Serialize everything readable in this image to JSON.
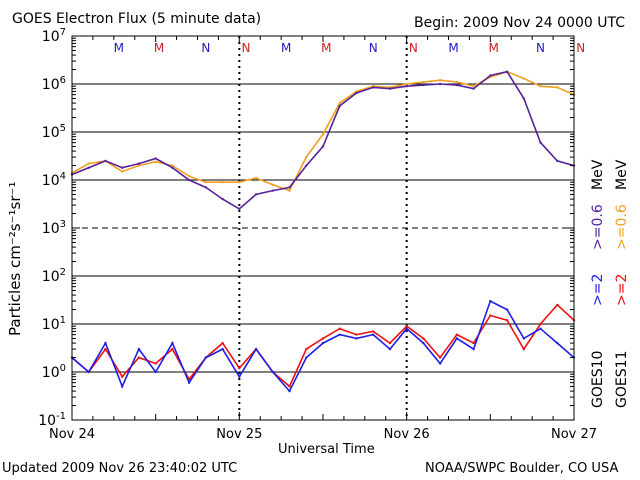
{
  "header": {
    "title": "GOES Electron Flux (5 minute data)",
    "begin": "Begin: 2009 Nov 24 0000 UTC"
  },
  "footer": {
    "updated": "Updated 2009 Nov 26 23:40:02 UTC",
    "source": "NOAA/SWPC Boulder, CO USA"
  },
  "axes": {
    "ylabel": "Particles cm⁻²s⁻¹sr⁻¹",
    "xlabel": "Universal Time",
    "xticks": [
      "Nov 24",
      "Nov 25",
      "Nov 26",
      "Nov 27"
    ]
  },
  "legend": {
    "goes10": "GOES10",
    "goes11": "GOES11",
    "g10_2mev": ">=2",
    "g10_06mev": ">=0.6",
    "g11_2mev": ">=2",
    "g11_06mev": ">=0.6",
    "unit1": "MeV",
    "unit2": "MeV"
  },
  "colors": {
    "g10_2mev": "#1f1fe6",
    "g11_2mev": "#f01010",
    "g10_06mev": "#55229a",
    "g11_06mev": "#f0a020",
    "mn_blue": "#2020c0",
    "mn_red": "#d02020"
  },
  "mn_markers": [
    {
      "label": "M",
      "day": 0.28,
      "color": "blue"
    },
    {
      "label": "M",
      "day": 0.52,
      "color": "red"
    },
    {
      "label": "N",
      "day": 0.8,
      "color": "blue"
    },
    {
      "label": "N",
      "day": 1.04,
      "color": "red"
    },
    {
      "label": "M",
      "day": 1.28,
      "color": "blue"
    },
    {
      "label": "M",
      "day": 1.52,
      "color": "red"
    },
    {
      "label": "N",
      "day": 1.8,
      "color": "blue"
    },
    {
      "label": "N",
      "day": 2.04,
      "color": "red"
    },
    {
      "label": "M",
      "day": 2.28,
      "color": "blue"
    },
    {
      "label": "M",
      "day": 2.52,
      "color": "red"
    },
    {
      "label": "N",
      "day": 2.8,
      "color": "blue"
    },
    {
      "label": "N",
      "day": 3.04,
      "color": "red"
    }
  ],
  "chart_data": {
    "type": "line",
    "title": "GOES Electron Flux (5 minute data)",
    "xlabel": "Universal Time",
    "ylabel": "Particles cm⁻²s⁻¹sr⁻¹",
    "x_unit": "days since 2009 Nov 24 0000 UTC",
    "xlim": [
      0,
      3
    ],
    "ylim": [
      0.1,
      10000000
    ],
    "yscale": "log",
    "yticks": [
      0.1,
      1,
      10,
      100,
      1000,
      10000,
      100000,
      1000000,
      10000000
    ],
    "xtick_labels": [
      "Nov 24",
      "Nov 25",
      "Nov 26",
      "Nov 27"
    ],
    "series": [
      {
        "name": "GOES11 >=0.6 MeV",
        "color_key": "g11_06mev",
        "x": [
          0.0,
          0.1,
          0.2,
          0.3,
          0.4,
          0.5,
          0.6,
          0.7,
          0.8,
          0.9,
          1.0,
          1.1,
          1.2,
          1.3,
          1.4,
          1.5,
          1.6,
          1.7,
          1.8,
          1.9,
          2.0,
          2.1,
          2.2,
          2.3,
          2.4,
          2.5,
          2.6,
          2.7,
          2.8,
          2.9,
          3.0
        ],
        "y": [
          14000,
          22000,
          25000,
          15000,
          20000,
          24000,
          20000,
          12000,
          9000,
          9000,
          9000,
          11000,
          8000,
          6000,
          30000,
          90000,
          400000,
          700000,
          900000,
          850000,
          1000000,
          1100000,
          1200000,
          1100000,
          900000,
          1400000,
          1800000,
          1300000,
          900000,
          850000,
          600000
        ]
      },
      {
        "name": "GOES10 >=0.6 MeV",
        "color_key": "g10_06mev",
        "x": [
          0.0,
          0.1,
          0.2,
          0.3,
          0.4,
          0.5,
          0.6,
          0.7,
          0.8,
          0.9,
          1.0,
          1.1,
          1.2,
          1.3,
          1.4,
          1.5,
          1.6,
          1.7,
          1.8,
          1.9,
          2.0,
          2.1,
          2.2,
          2.3,
          2.4,
          2.5,
          2.6,
          2.7,
          2.8,
          2.9,
          3.0
        ],
        "y": [
          13000,
          18000,
          25000,
          18000,
          22000,
          28000,
          18000,
          10000,
          7000,
          4000,
          2500,
          5000,
          6000,
          7000,
          20000,
          50000,
          350000,
          650000,
          850000,
          800000,
          900000,
          950000,
          1000000,
          950000,
          800000,
          1500000,
          1800000,
          500000,
          60000,
          25000,
          20000
        ]
      },
      {
        "name": "GOES11 >=2 MeV",
        "color_key": "g11_2mev",
        "x": [
          0.0,
          0.1,
          0.2,
          0.3,
          0.4,
          0.5,
          0.6,
          0.7,
          0.8,
          0.9,
          1.0,
          1.1,
          1.2,
          1.3,
          1.4,
          1.5,
          1.6,
          1.7,
          1.8,
          1.9,
          2.0,
          2.1,
          2.2,
          2.3,
          2.4,
          2.5,
          2.6,
          2.7,
          2.8,
          2.9,
          3.0
        ],
        "y": [
          2.0,
          1.0,
          3.0,
          0.8,
          2.0,
          1.5,
          3.0,
          0.7,
          2.0,
          4.0,
          1.2,
          3.0,
          1.0,
          0.5,
          3.0,
          5.0,
          8.0,
          6.0,
          7.0,
          4.0,
          9.0,
          5.0,
          2.0,
          6.0,
          4.0,
          15.0,
          12.0,
          3.0,
          10.0,
          25.0,
          12.0
        ]
      },
      {
        "name": "GOES10 >=2 MeV",
        "color_key": "g10_2mev",
        "x": [
          0.0,
          0.1,
          0.2,
          0.3,
          0.4,
          0.5,
          0.6,
          0.7,
          0.8,
          0.9,
          1.0,
          1.1,
          1.2,
          1.3,
          1.4,
          1.5,
          1.6,
          1.7,
          1.8,
          1.9,
          2.0,
          2.1,
          2.2,
          2.3,
          2.4,
          2.5,
          2.6,
          2.7,
          2.8,
          2.9,
          3.0
        ],
        "y": [
          2.0,
          1.0,
          4.0,
          0.5,
          3.0,
          1.0,
          4.0,
          0.6,
          2.0,
          3.0,
          0.8,
          3.0,
          1.0,
          0.4,
          2.0,
          4.0,
          6.0,
          5.0,
          6.0,
          3.0,
          8.0,
          4.0,
          1.5,
          5.0,
          3.0,
          30.0,
          20.0,
          5.0,
          8.0,
          4.0,
          2.0
        ]
      }
    ],
    "grid": "horizontal lines at each decade; dashed verticals at day boundaries",
    "legend_position": "right, rotated text"
  }
}
